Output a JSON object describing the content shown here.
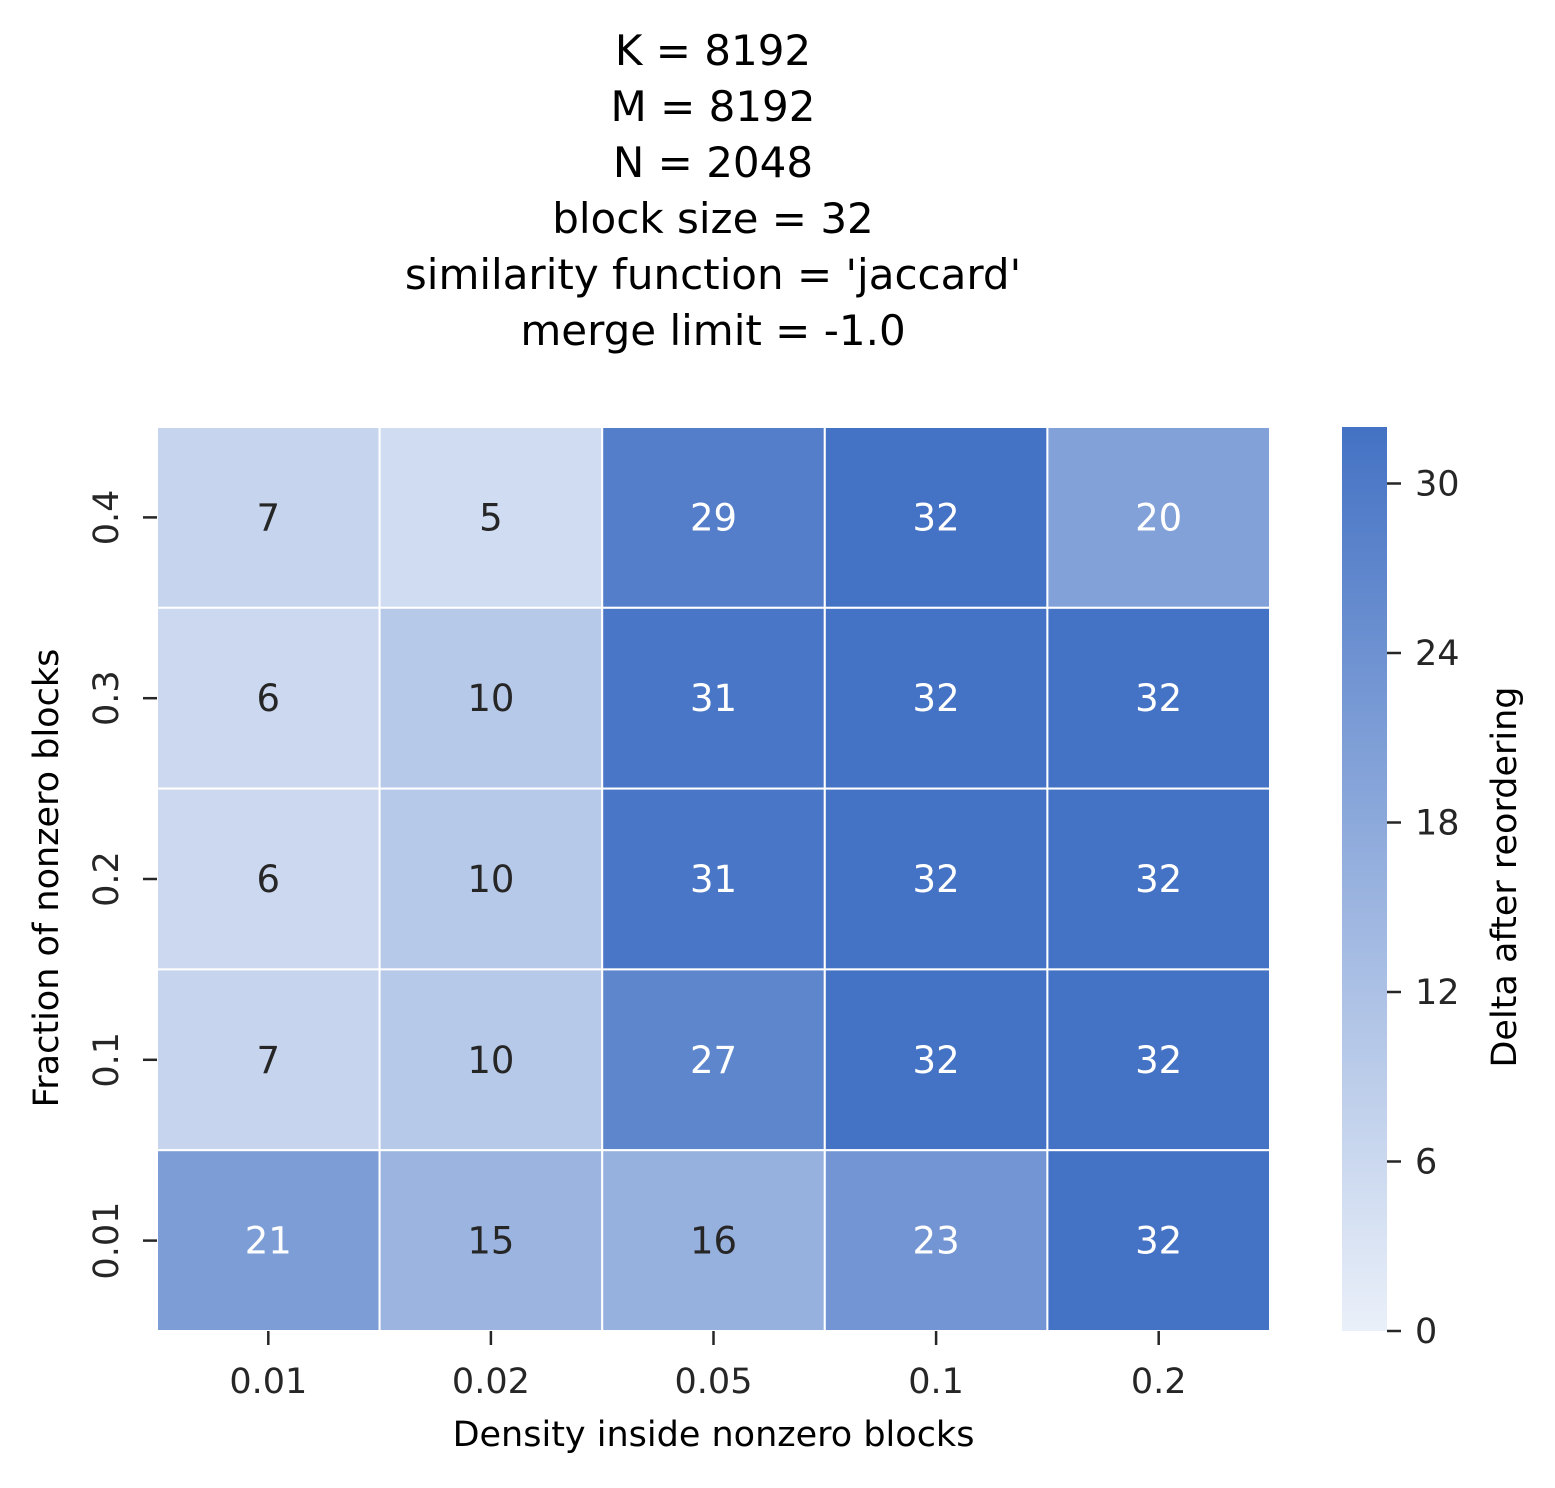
{
  "chart_data": {
    "type": "heatmap",
    "title_lines": [
      "K = 8192",
      "M = 8192",
      "N = 2048",
      "block size = 32",
      "similarity function = 'jaccard'",
      "merge limit = -1.0"
    ],
    "xlabel": "Density inside nonzero blocks",
    "ylabel": "Fraction of nonzero blocks",
    "x_categories": [
      "0.01",
      "0.02",
      "0.05",
      "0.1",
      "0.2"
    ],
    "y_categories": [
      "0.4",
      "0.3",
      "0.2",
      "0.1",
      "0.01"
    ],
    "values": [
      [
        7,
        5,
        29,
        32,
        20
      ],
      [
        6,
        10,
        31,
        32,
        32
      ],
      [
        6,
        10,
        31,
        32,
        32
      ],
      [
        7,
        10,
        27,
        32,
        32
      ],
      [
        21,
        15,
        16,
        23,
        32
      ]
    ],
    "colorbar": {
      "label": "Delta after reordering",
      "min": 0,
      "max": 32,
      "ticks": [
        0,
        6,
        12,
        18,
        24,
        30
      ],
      "color_low": "#eaf0f9",
      "color_high": "#4472c4"
    },
    "grid": false,
    "cell_border_color": "#ffffff",
    "annot_color_dark": "#262626",
    "annot_color_light": "#ffffff"
  }
}
